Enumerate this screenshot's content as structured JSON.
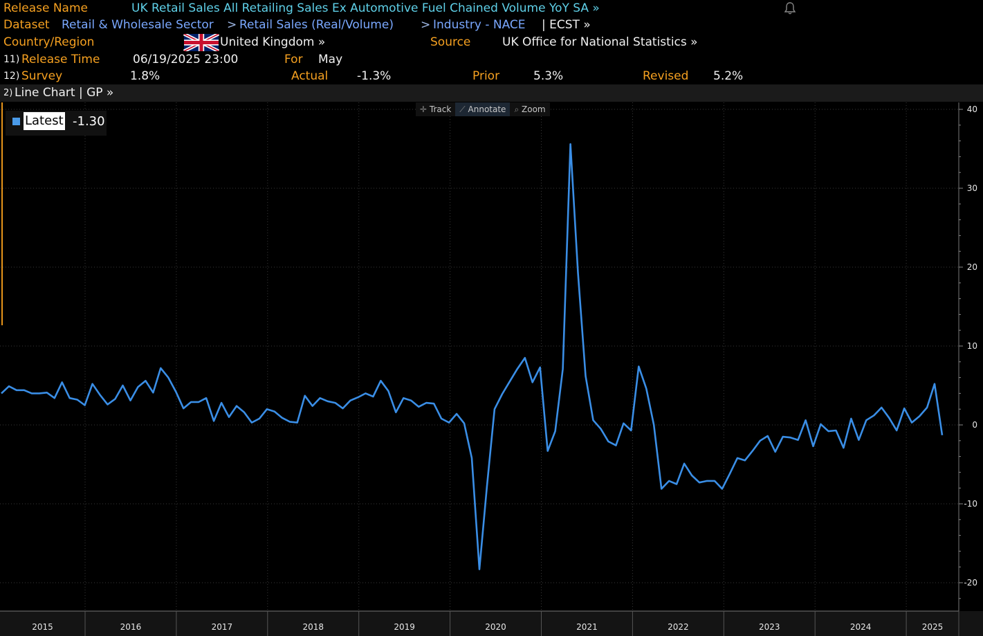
{
  "header": {
    "release_name_label": "Release Name",
    "release_name": "UK Retail Sales All Retailing Sales Ex Automotive Fuel Chained Volume YoY SA »",
    "dataset_label": "Dataset",
    "dataset_parts": [
      "Retail & Wholesale Sector",
      "Retail Sales (Real/Volume)",
      "Industry - NACE"
    ],
    "dataset_sep": ">",
    "dataset_code": "| ECST »",
    "country_label": "Country/Region",
    "country": "United Kingdom »",
    "flag_icon": "uk-flag-icon",
    "source_label": "Source",
    "source": "UK Office for Statistics",
    "source_full": "UK Office for National Statistics »",
    "release_time_num": "11)",
    "release_time_label": "Release Time",
    "release_time": "06/19/2025 23:00",
    "for_label": "For",
    "for_value": "May",
    "survey_num": "12)",
    "survey_label": "Survey",
    "survey": "1.8%",
    "actual_label": "Actual",
    "actual": "-1.3%",
    "prior_label": "Prior",
    "prior": "5.3%",
    "revised_label": "Revised",
    "revised": "5.2%",
    "bell_icon": "bell-icon"
  },
  "chart_bar": {
    "num": "2)",
    "label": "Line Chart | GP »"
  },
  "toolbar": {
    "track": "Track",
    "annotate": "Annotate",
    "zoom": "Zoom"
  },
  "legend": {
    "label": "Latest",
    "value": "-1.30"
  },
  "colors": {
    "accent_orange": "#f5a020",
    "line_blue": "#3a8ee6"
  },
  "chart_data": {
    "type": "line",
    "title": "",
    "xlabel": "",
    "ylabel": "",
    "ylim": [
      -24,
      40
    ],
    "yticks": [
      40,
      30,
      20,
      10,
      0,
      -10,
      -20
    ],
    "xtick_labels": [
      "2015",
      "2016",
      "2017",
      "2018",
      "2019",
      "2020",
      "2021",
      "2022",
      "2023",
      "2024",
      "2025"
    ],
    "grid": true,
    "series": [
      {
        "name": "Latest",
        "values": [
          4.0,
          4.9,
          4.4,
          4.4,
          4.0,
          4.0,
          4.1,
          3.4,
          5.4,
          3.4,
          3.2,
          2.5,
          5.2,
          3.8,
          2.6,
          3.3,
          5.0,
          3.1,
          4.8,
          5.6,
          4.1,
          7.2,
          6.0,
          4.2,
          2.1,
          2.9,
          2.9,
          3.4,
          0.5,
          2.8,
          1.0,
          2.4,
          1.6,
          0.3,
          0.8,
          2.0,
          1.7,
          0.9,
          0.4,
          0.3,
          3.7,
          2.4,
          3.4,
          3.0,
          2.8,
          2.1,
          3.1,
          3.5,
          4.0,
          3.6,
          5.6,
          4.3,
          1.6,
          3.4,
          3.1,
          2.3,
          2.8,
          2.7,
          0.8,
          0.3,
          1.4,
          0.2,
          -4.2,
          -18.3,
          -7.8,
          2.0,
          3.9,
          5.5,
          7.1,
          8.5,
          5.4,
          7.3,
          -3.3,
          -0.8,
          7.1,
          35.6,
          19.3,
          6.2,
          0.6,
          -0.5,
          -2.1,
          -2.6,
          0.2,
          -0.7,
          7.4,
          4.6,
          0.0,
          -8.1,
          -7.1,
          -7.5,
          -4.9,
          -6.4,
          -7.3,
          -7.1,
          -7.1,
          -8.1,
          -6.2,
          -4.2,
          -4.5,
          -3.3,
          -2.0,
          -1.4,
          -3.4,
          -1.5,
          -1.6,
          -1.9,
          0.6,
          -2.7,
          0.1,
          -0.8,
          -0.7,
          -2.9,
          0.8,
          -1.9,
          0.6,
          1.2,
          2.2,
          0.9,
          -0.7,
          2.1,
          0.3,
          1.1,
          2.2,
          5.2,
          -1.3
        ]
      }
    ]
  }
}
